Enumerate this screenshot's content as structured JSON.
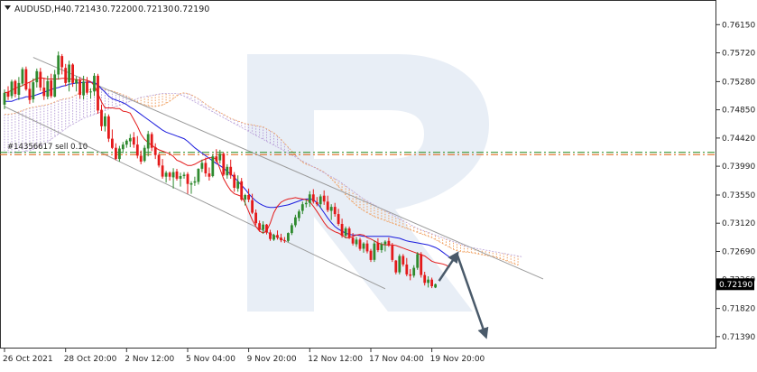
{
  "header": {
    "symbol_timeframe": "AUDUSD,H4",
    "open": "0.72143",
    "high": "0.72200",
    "low": "0.72130",
    "close": "0.72190"
  },
  "order_label": "#14356617 sell 0.10",
  "current_price_label": "0.72190",
  "watermark": "R",
  "colors": {
    "bull": "#2f8a2f",
    "bear": "#e41a1a",
    "tenkan": "#e41a1a",
    "kijun": "#1a1add",
    "cloud_bear": "#f0a060",
    "cloud_bull": "#b8a0d8",
    "channel": "#9a9a9a",
    "arrow": "#4a5a6a",
    "order_green": "#1f8a1f",
    "order_red": "#e06010",
    "watermark": "#e8eef6"
  },
  "chart_data": {
    "type": "candlestick",
    "instrument": "AUDUSD",
    "timeframe": "H4",
    "ylim": [
      0.7125,
      0.7625
    ],
    "y_ticks": [
      "0.76150",
      "0.75720",
      "0.75280",
      "0.74850",
      "0.74420",
      "0.73990",
      "0.73550",
      "0.73120",
      "0.72690",
      "0.72260",
      "0.71820",
      "0.71390"
    ],
    "x_ticks": [
      {
        "label": "26 Oct 2021",
        "bar": 0
      },
      {
        "label": "28 Oct 20:00",
        "bar": 17
      },
      {
        "label": "2 Nov 12:00",
        "bar": 34
      },
      {
        "label": "5 Nov 04:00",
        "bar": 51
      },
      {
        "label": "9 Nov 20:00",
        "bar": 68
      },
      {
        "label": "12 Nov 12:00",
        "bar": 85
      },
      {
        "label": "17 Nov 04:00",
        "bar": 102
      },
      {
        "label": "19 Nov 20:00",
        "bar": 119
      }
    ],
    "order_level": 0.742,
    "last_price": 0.7219,
    "tenkan_sen": [
      0.7511,
      0.7512,
      0.7515,
      0.7518,
      0.752,
      0.7522,
      0.7525,
      0.7527,
      0.753,
      0.7533,
      0.7534,
      0.7533,
      0.7532,
      0.7532,
      0.7532,
      0.7532,
      0.7533,
      0.7533,
      0.7532,
      0.7532,
      0.7531,
      0.7531,
      0.7531,
      0.753,
      0.7528,
      0.7522,
      0.751,
      0.7497,
      0.7488,
      0.7488,
      0.7488,
      0.7487,
      0.7487,
      0.7483,
      0.7482,
      0.748,
      0.747,
      0.746,
      0.7448,
      0.744,
      0.7435,
      0.7431,
      0.7427,
      0.7424,
      0.7422,
      0.742,
      0.7418,
      0.7414,
      0.7408,
      0.7406,
      0.7403,
      0.74,
      0.74,
      0.7402,
      0.7405,
      0.7408,
      0.741,
      0.7412,
      0.7412,
      0.741,
      0.7395,
      0.738,
      0.737,
      0.7362,
      0.7357,
      0.7355,
      0.7353,
      0.7343,
      0.733,
      0.7317,
      0.7307,
      0.73,
      0.7297,
      0.73,
      0.7312,
      0.7328,
      0.7338,
      0.7344,
      0.7347,
      0.7349,
      0.735,
      0.7351,
      0.735,
      0.7349,
      0.7348,
      0.7345,
      0.7338,
      0.733,
      0.7322,
      0.7313,
      0.7306,
      0.7302,
      0.7299,
      0.7297,
      0.7294,
      0.729,
      0.729,
      0.7292,
      0.7294,
      0.7295,
      0.7294,
      0.729,
      0.7288,
      0.7285,
      0.7282,
      0.728,
      0.7279,
      0.7279,
      0.7279,
      0.7278,
      0.7276,
      0.7274,
      0.7272,
      0.727,
      0.7268,
      0.7266,
      0.7264,
      0.7262,
      0.7258,
      0.7254,
      0.7252,
      0.7251,
      0.725,
      0.7248,
      0.7245
    ],
    "kijun_sen": [
      0.7498,
      0.7498,
      0.7498,
      0.75,
      0.7502,
      0.7503,
      0.7505,
      0.7505,
      0.7506,
      0.7508,
      0.751,
      0.7512,
      0.7514,
      0.7516,
      0.7518,
      0.7519,
      0.7521,
      0.7522,
      0.7524,
      0.7525,
      0.7526,
      0.7526,
      0.7527,
      0.7527,
      0.7527,
      0.7527,
      0.7523,
      0.7517,
      0.7512,
      0.7506,
      0.7502,
      0.75,
      0.7498,
      0.7496,
      0.7493,
      0.7489,
      0.7486,
      0.7482,
      0.7478,
      0.7474,
      0.747,
      0.7466,
      0.7462,
      0.7458,
      0.7454,
      0.7451,
      0.7449,
      0.7447,
      0.7445,
      0.7443,
      0.7441,
      0.7437,
      0.7432,
      0.7427,
      0.7423,
      0.7419,
      0.7415,
      0.7411,
      0.7407,
      0.7403,
      0.74,
      0.7396,
      0.7391,
      0.7387,
      0.7382,
      0.7376,
      0.737,
      0.7364,
      0.7357,
      0.7351,
      0.7346,
      0.7342,
      0.7339,
      0.7337,
      0.7336,
      0.7336,
      0.7337,
      0.7338,
      0.7339,
      0.734,
      0.7342,
      0.7344,
      0.7346,
      0.7348,
      0.7349,
      0.7349,
      0.7348,
      0.7343,
      0.7336,
      0.7328,
      0.732,
      0.7313,
      0.7307,
      0.7303,
      0.73,
      0.7297,
      0.7295,
      0.7294,
      0.7294,
      0.7293,
      0.7292,
      0.7292,
      0.7292,
      0.7292,
      0.7292,
      0.7292,
      0.7292,
      0.7292,
      0.7291,
      0.729,
      0.7289,
      0.7287,
      0.7285,
      0.7284,
      0.7283,
      0.7282,
      0.7281,
      0.728,
      0.7279,
      0.7277,
      0.7275,
      0.7272,
      0.7268,
      0.7264,
      0.726,
      0.7255
    ],
    "cloud": {
      "start_bar": 0,
      "span_a": [
        0.7478,
        0.7478,
        0.7479,
        0.748,
        0.7482,
        0.7484,
        0.7486,
        0.7488,
        0.7489,
        0.749,
        0.7491,
        0.7492,
        0.7493,
        0.7495,
        0.7497,
        0.7499,
        0.7501,
        0.7502,
        0.7503,
        0.7505,
        0.7508,
        0.7511,
        0.7513,
        0.7515,
        0.7516,
        0.7517,
        0.7518,
        0.7517,
        0.7516,
        0.7515,
        0.7514,
        0.7512,
        0.751,
        0.7508,
        0.7506,
        0.7503,
        0.75,
        0.7497,
        0.7494,
        0.7492,
        0.7491,
        0.749,
        0.749,
        0.7491,
        0.7492,
        0.7495,
        0.7498,
        0.7502,
        0.7506,
        0.751,
        0.7511,
        0.751,
        0.7508,
        0.7505,
        0.7502,
        0.7498,
        0.7494,
        0.749,
        0.7487,
        0.7484,
        0.7481,
        0.7478,
        0.7475,
        0.7472,
        0.747,
        0.7468,
        0.7466,
        0.7464,
        0.7463,
        0.7462,
        0.7461,
        0.746,
        0.7459,
        0.7456,
        0.7453,
        0.745,
        0.7445,
        0.744,
        0.7434,
        0.7428,
        0.7422,
        0.7416,
        0.741,
        0.7405,
        0.7402,
        0.74,
        0.7398,
        0.7396,
        0.7393,
        0.739,
        0.7385,
        0.738,
        0.7374,
        0.7368,
        0.7362,
        0.7355,
        0.7349,
        0.7344,
        0.7339,
        0.7335,
        0.7331,
        0.7328,
        0.7325,
        0.7322,
        0.732,
        0.7318,
        0.7316,
        0.7314,
        0.7312,
        0.731,
        0.7308,
        0.7306,
        0.7304,
        0.7302,
        0.73,
        0.7298,
        0.7296,
        0.7294,
        0.7292,
        0.729,
        0.7287,
        0.7284,
        0.7281,
        0.7278,
        0.7275,
        0.7272,
        0.727,
        0.7269,
        0.7268,
        0.7268,
        0.7267,
        0.7266,
        0.7265,
        0.7264,
        0.7263,
        0.7262,
        0.7261,
        0.726,
        0.7258,
        0.7256,
        0.7254,
        0.7252,
        0.725,
        0.7248
      ],
      "span_b": [
        0.742,
        0.742,
        0.742,
        0.742,
        0.742,
        0.7421,
        0.7422,
        0.7423,
        0.7425,
        0.7427,
        0.743,
        0.7433,
        0.7436,
        0.744,
        0.7444,
        0.7448,
        0.7452,
        0.7456,
        0.746,
        0.7463,
        0.7466,
        0.7469,
        0.7472,
        0.7474,
        0.7476,
        0.7478,
        0.748,
        0.7482,
        0.7484,
        0.7486,
        0.7488,
        0.749,
        0.7492,
        0.7494,
        0.7496,
        0.7498,
        0.75,
        0.7502,
        0.7504,
        0.7505,
        0.7506,
        0.7507,
        0.7508,
        0.7509,
        0.751,
        0.751,
        0.751,
        0.751,
        0.751,
        0.7508,
        0.7506,
        0.7503,
        0.75,
        0.7497,
        0.7494,
        0.7491,
        0.7488,
        0.7485,
        0.7482,
        0.7479,
        0.7476,
        0.7473,
        0.747,
        0.7467,
        0.7464,
        0.7461,
        0.7458,
        0.7455,
        0.7452,
        0.7449,
        0.7446,
        0.7443,
        0.744,
        0.7437,
        0.7434,
        0.7431,
        0.7428,
        0.7425,
        0.7422,
        0.7419,
        0.7416,
        0.7413,
        0.741,
        0.7407,
        0.7404,
        0.7401,
        0.7398,
        0.7395,
        0.7392,
        0.7389,
        0.7386,
        0.7383,
        0.738,
        0.7377,
        0.7373,
        0.7369,
        0.7365,
        0.7361,
        0.7357,
        0.7353,
        0.7349,
        0.7346,
        0.7343,
        0.734,
        0.7337,
        0.7334,
        0.7331,
        0.7328,
        0.7325,
        0.7322,
        0.7319,
        0.7316,
        0.7313,
        0.731,
        0.7307,
        0.7304,
        0.7302,
        0.73,
        0.7298,
        0.7296,
        0.7294,
        0.7292,
        0.729,
        0.7288,
        0.7286,
        0.7284,
        0.7282,
        0.728,
        0.7278,
        0.7276,
        0.7275,
        0.7274,
        0.7273,
        0.7272,
        0.7271,
        0.727,
        0.7269,
        0.7268,
        0.7267,
        0.7266,
        0.7265,
        0.7264,
        0.7263,
        0.7262,
        0.7261
      ]
    },
    "channel": {
      "upper": [
        {
          "bar": 8,
          "price": 0.7565
        },
        {
          "bar": 150,
          "price": 0.7227
        }
      ],
      "lower": [
        {
          "bar": 0,
          "price": 0.749
        },
        {
          "bar": 106,
          "price": 0.7212
        }
      ]
    },
    "forecast_path": [
      {
        "bar": 121,
        "price": 0.7224
      },
      {
        "bar": 126,
        "price": 0.7265
      },
      {
        "bar": 134,
        "price": 0.714
      }
    ],
    "candles": [
      [
        0.7493,
        0.7516,
        0.7486,
        0.7511
      ],
      [
        0.7512,
        0.7521,
        0.75,
        0.7505
      ],
      [
        0.7506,
        0.7531,
        0.7502,
        0.7528
      ],
      [
        0.7529,
        0.7531,
        0.7504,
        0.7509
      ],
      [
        0.7508,
        0.7535,
        0.75,
        0.7526
      ],
      [
        0.7525,
        0.755,
        0.7521,
        0.7547
      ],
      [
        0.7547,
        0.7551,
        0.7514,
        0.7516
      ],
      [
        0.7517,
        0.7528,
        0.7494,
        0.75
      ],
      [
        0.7501,
        0.7533,
        0.7496,
        0.7527
      ],
      [
        0.7527,
        0.7548,
        0.7519,
        0.7544
      ],
      [
        0.7543,
        0.7549,
        0.7514,
        0.7519
      ],
      [
        0.7519,
        0.7534,
        0.75,
        0.7506
      ],
      [
        0.7505,
        0.7537,
        0.7501,
        0.7529
      ],
      [
        0.753,
        0.754,
        0.7503,
        0.7506
      ],
      [
        0.7505,
        0.7546,
        0.7504,
        0.7539
      ],
      [
        0.7539,
        0.7574,
        0.7531,
        0.7568
      ],
      [
        0.7567,
        0.757,
        0.7539,
        0.755
      ],
      [
        0.7549,
        0.7555,
        0.7521,
        0.7526
      ],
      [
        0.7527,
        0.756,
        0.7513,
        0.7554
      ],
      [
        0.7554,
        0.7556,
        0.752,
        0.7526
      ],
      [
        0.7525,
        0.7536,
        0.7513,
        0.7531
      ],
      [
        0.753,
        0.7535,
        0.7502,
        0.7508
      ],
      [
        0.7507,
        0.7537,
        0.7501,
        0.7528
      ],
      [
        0.7528,
        0.7535,
        0.7508,
        0.7511
      ],
      [
        0.7512,
        0.7518,
        0.7502,
        0.7513
      ],
      [
        0.7513,
        0.7541,
        0.7506,
        0.7537
      ],
      [
        0.7537,
        0.754,
        0.7479,
        0.7484
      ],
      [
        0.7485,
        0.7493,
        0.7453,
        0.746
      ],
      [
        0.746,
        0.748,
        0.7452,
        0.7475
      ],
      [
        0.7475,
        0.7478,
        0.7436,
        0.7441
      ],
      [
        0.7441,
        0.7455,
        0.7425,
        0.7427
      ],
      [
        0.7427,
        0.7434,
        0.7408,
        0.741
      ],
      [
        0.741,
        0.743,
        0.7406,
        0.7426
      ],
      [
        0.7425,
        0.7436,
        0.7419,
        0.7432
      ],
      [
        0.7432,
        0.744,
        0.7427,
        0.7438
      ],
      [
        0.7437,
        0.7448,
        0.7428,
        0.7442
      ],
      [
        0.7443,
        0.7451,
        0.7427,
        0.7432
      ],
      [
        0.7432,
        0.7445,
        0.7411,
        0.7415
      ],
      [
        0.7415,
        0.7423,
        0.7402,
        0.7406
      ],
      [
        0.7407,
        0.7431,
        0.7405,
        0.7427
      ],
      [
        0.7426,
        0.7453,
        0.7414,
        0.7448
      ],
      [
        0.7448,
        0.7451,
        0.7422,
        0.7427
      ],
      [
        0.7428,
        0.7434,
        0.741,
        0.7416
      ],
      [
        0.7416,
        0.7419,
        0.7397,
        0.74
      ],
      [
        0.74,
        0.741,
        0.738,
        0.7383
      ],
      [
        0.7383,
        0.7392,
        0.7374,
        0.7389
      ],
      [
        0.7389,
        0.7391,
        0.7377,
        0.7383
      ],
      [
        0.7382,
        0.7396,
        0.7365,
        0.739
      ],
      [
        0.7391,
        0.7395,
        0.7377,
        0.738
      ],
      [
        0.738,
        0.7389,
        0.7368,
        0.7384
      ],
      [
        0.7384,
        0.739,
        0.738,
        0.7386
      ],
      [
        0.7387,
        0.739,
        0.7357,
        0.7372
      ],
      [
        0.7371,
        0.7376,
        0.7357,
        0.7373
      ],
      [
        0.7374,
        0.7383,
        0.7369,
        0.7376
      ],
      [
        0.7375,
        0.7396,
        0.7371,
        0.7395
      ],
      [
        0.7395,
        0.7409,
        0.739,
        0.7404
      ],
      [
        0.7404,
        0.7412,
        0.7383,
        0.7388
      ],
      [
        0.7388,
        0.7397,
        0.7377,
        0.7383
      ],
      [
        0.7384,
        0.7417,
        0.7382,
        0.7414
      ],
      [
        0.7414,
        0.7425,
        0.7404,
        0.7407
      ],
      [
        0.7408,
        0.7424,
        0.7403,
        0.7418
      ],
      [
        0.7418,
        0.742,
        0.7384,
        0.7386
      ],
      [
        0.7385,
        0.7402,
        0.738,
        0.7398
      ],
      [
        0.7398,
        0.7409,
        0.738,
        0.7385
      ],
      [
        0.7386,
        0.739,
        0.736,
        0.7366
      ],
      [
        0.7365,
        0.7385,
        0.736,
        0.7376
      ],
      [
        0.7376,
        0.7381,
        0.7346,
        0.7348
      ],
      [
        0.7348,
        0.7357,
        0.7339,
        0.7355
      ],
      [
        0.7355,
        0.7365,
        0.7344,
        0.7348
      ],
      [
        0.7347,
        0.7357,
        0.7326,
        0.7328
      ],
      [
        0.7328,
        0.7333,
        0.7309,
        0.7312
      ],
      [
        0.7312,
        0.7316,
        0.7299,
        0.7302
      ],
      [
        0.7302,
        0.7315,
        0.7296,
        0.731
      ],
      [
        0.731,
        0.7311,
        0.7295,
        0.7298
      ],
      [
        0.7298,
        0.7302,
        0.7285,
        0.7288
      ],
      [
        0.7287,
        0.7296,
        0.7285,
        0.7294
      ],
      [
        0.7294,
        0.7301,
        0.7287,
        0.729
      ],
      [
        0.729,
        0.7296,
        0.7283,
        0.7286
      ],
      [
        0.7286,
        0.7291,
        0.7282,
        0.7285
      ],
      [
        0.7285,
        0.7298,
        0.7283,
        0.7297
      ],
      [
        0.7297,
        0.7312,
        0.7294,
        0.7309
      ],
      [
        0.7309,
        0.7325,
        0.7306,
        0.7321
      ],
      [
        0.732,
        0.7333,
        0.7315,
        0.733
      ],
      [
        0.7331,
        0.7345,
        0.7326,
        0.7341
      ],
      [
        0.7341,
        0.7348,
        0.7336,
        0.7343
      ],
      [
        0.7343,
        0.7361,
        0.7337,
        0.7356
      ],
      [
        0.7356,
        0.7364,
        0.7342,
        0.7345
      ],
      [
        0.7344,
        0.7352,
        0.7338,
        0.7341
      ],
      [
        0.7341,
        0.7356,
        0.7335,
        0.7353
      ],
      [
        0.7354,
        0.7362,
        0.734,
        0.7345
      ],
      [
        0.7345,
        0.7354,
        0.7329,
        0.7332
      ],
      [
        0.7331,
        0.7341,
        0.7317,
        0.7337
      ],
      [
        0.7337,
        0.7343,
        0.7322,
        0.7326
      ],
      [
        0.7326,
        0.7334,
        0.7308,
        0.7311
      ],
      [
        0.7311,
        0.7319,
        0.729,
        0.7293
      ],
      [
        0.7293,
        0.7307,
        0.7289,
        0.7304
      ],
      [
        0.7304,
        0.7307,
        0.7288,
        0.729
      ],
      [
        0.729,
        0.7297,
        0.7278,
        0.7281
      ],
      [
        0.728,
        0.7291,
        0.7276,
        0.7287
      ],
      [
        0.7287,
        0.729,
        0.727,
        0.7273
      ],
      [
        0.7273,
        0.7283,
        0.7267,
        0.7281
      ],
      [
        0.7281,
        0.7286,
        0.7266,
        0.7269
      ],
      [
        0.727,
        0.7273,
        0.7253,
        0.7256
      ],
      [
        0.7256,
        0.7286,
        0.7253,
        0.7281
      ],
      [
        0.7282,
        0.7289,
        0.7268,
        0.7271
      ],
      [
        0.7271,
        0.7283,
        0.7267,
        0.728
      ],
      [
        0.728,
        0.7286,
        0.7269,
        0.7284
      ],
      [
        0.7285,
        0.729,
        0.7276,
        0.7278
      ],
      [
        0.7278,
        0.7282,
        0.7253,
        0.7256
      ],
      [
        0.7255,
        0.7256,
        0.7234,
        0.7237
      ],
      [
        0.7237,
        0.7265,
        0.7234,
        0.7262
      ],
      [
        0.7262,
        0.7265,
        0.7246,
        0.7249
      ],
      [
        0.7249,
        0.7259,
        0.7231,
        0.7234
      ],
      [
        0.7234,
        0.7242,
        0.7225,
        0.7232
      ],
      [
        0.7232,
        0.7248,
        0.7229,
        0.7244
      ],
      [
        0.7244,
        0.7268,
        0.7241,
        0.7265
      ],
      [
        0.7265,
        0.7268,
        0.7229,
        0.7233
      ],
      [
        0.7233,
        0.7238,
        0.7217,
        0.7221
      ],
      [
        0.7221,
        0.7231,
        0.7214,
        0.7226
      ],
      [
        0.7226,
        0.7229,
        0.7213,
        0.7216
      ],
      [
        0.7214,
        0.722,
        0.7213,
        0.7219
      ]
    ]
  }
}
